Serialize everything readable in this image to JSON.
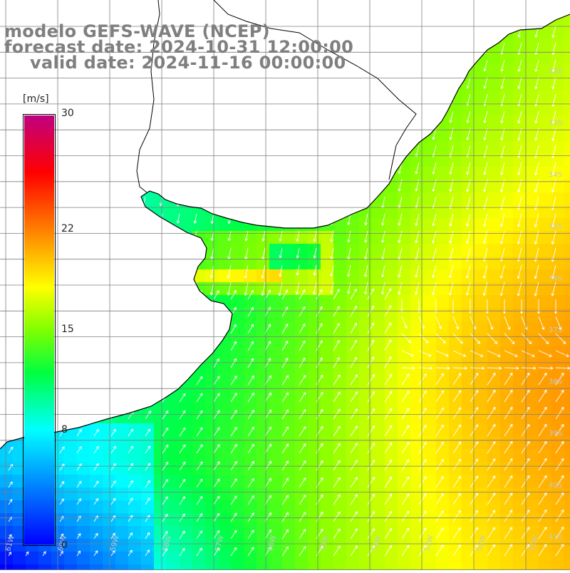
{
  "title": {
    "line1": "modelo GEFS-WAVE (NCEP)",
    "line2": "forecast date: 2024-10-31 12:00:00",
    "line3": "valid date: 2024-11-16 00:00:00"
  },
  "colorbar": {
    "unit": "[m/s]",
    "ticks": [
      "30",
      "22",
      "15",
      "8",
      "0"
    ],
    "tick_values": [
      30,
      22,
      15,
      8,
      0
    ],
    "range": [
      0,
      30
    ],
    "stops": [
      {
        "value": 0,
        "color": "#0000ff"
      },
      {
        "value": 4,
        "color": "#0080ff"
      },
      {
        "value": 8,
        "color": "#00ffff"
      },
      {
        "value": 12,
        "color": "#00ff40"
      },
      {
        "value": 15,
        "color": "#80ff00"
      },
      {
        "value": 18,
        "color": "#ffff00"
      },
      {
        "value": 22,
        "color": "#ff8000"
      },
      {
        "value": 26,
        "color": "#ff0000"
      },
      {
        "value": 30,
        "color": "#c00080"
      }
    ]
  },
  "axes": {
    "lat_labels": [
      "32S",
      "33S",
      "34S",
      "35S",
      "36S",
      "37S",
      "38S",
      "39S",
      "40S",
      "41S"
    ],
    "lon_labels": [
      "61W",
      "60W",
      "59W",
      "58W",
      "57W",
      "56W",
      "55W",
      "54W",
      "53W",
      "52W",
      "51W"
    ]
  },
  "colors": {
    "land": "#ffffff",
    "grid": "#7f7f7f",
    "coast": "#000000",
    "title_text": "#7f7f7f",
    "arrow": "#ffffff"
  }
}
